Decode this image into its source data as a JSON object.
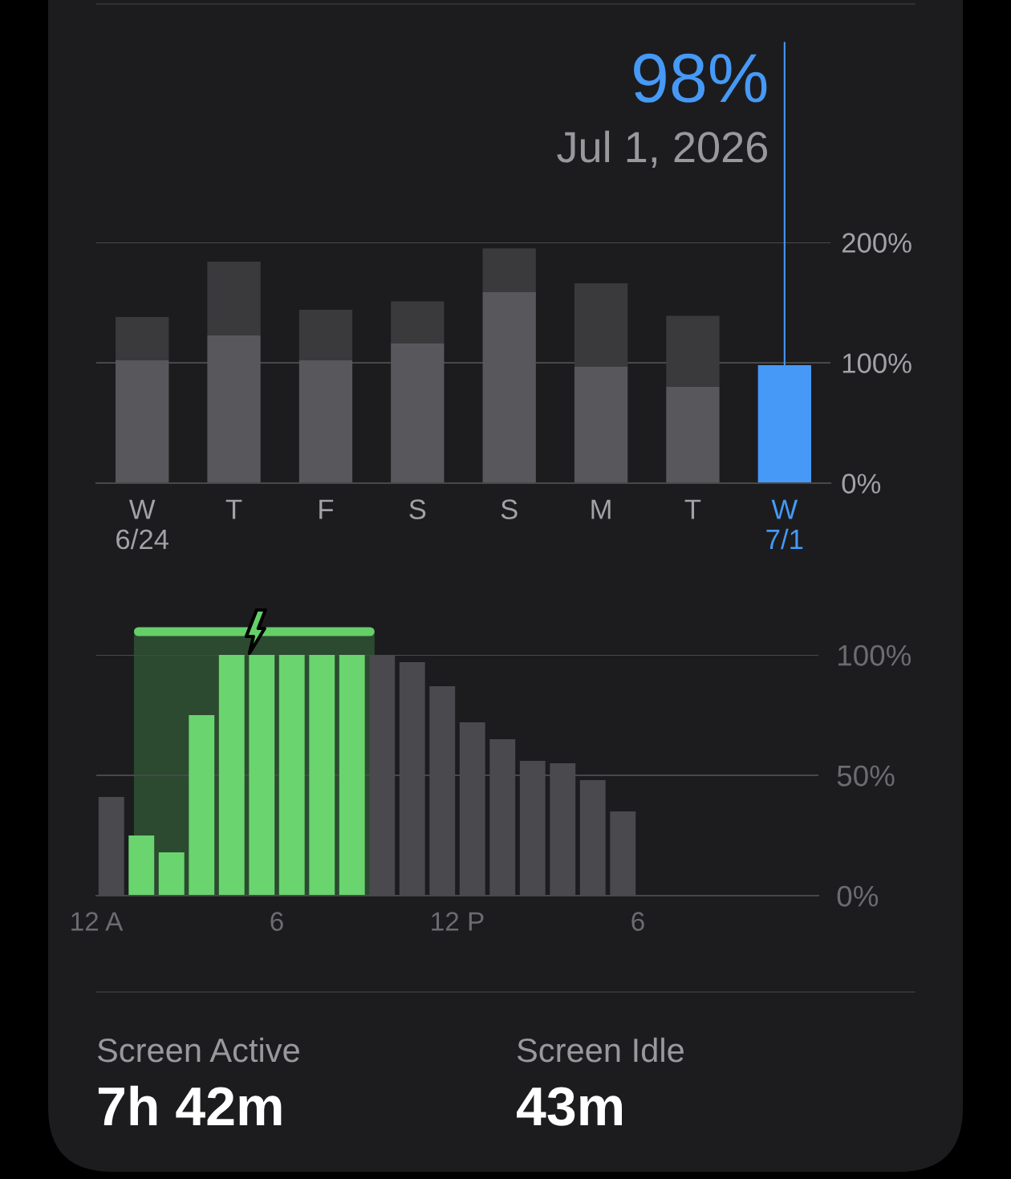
{
  "chart_data": [
    {
      "type": "bar",
      "categories": [
        "W\n6/24",
        "T",
        "F",
        "S",
        "S",
        "M",
        "T",
        "W\n7/1"
      ],
      "stacked": true,
      "series": [
        {
          "color": "#58585c",
          "colors": [
            "#58585c",
            "#58585c",
            "#58585c",
            "#58585c",
            "#58585c",
            "#58585c",
            "#58585c",
            "#4699f6"
          ],
          "values": [
            102,
            123,
            102,
            116,
            159,
            97,
            80,
            98
          ]
        },
        {
          "color": "#3a3a3d",
          "values": [
            36,
            61,
            42,
            35,
            36,
            69,
            59,
            null
          ]
        }
      ],
      "ylim": [
        0,
        200
      ],
      "yticks": [
        {
          "value": 0,
          "label": "0%"
        },
        {
          "value": 100,
          "label": "100%"
        },
        {
          "value": 200,
          "label": "200%"
        }
      ],
      "grid": "y",
      "annotations": [
        {
          "text": "98%",
          "x": "W\n7/1",
          "y": 98
        },
        "Jul 1, 2026"
      ]
    },
    {
      "type": "bar",
      "x": [
        "2026-07-01T00:30",
        "2026-07-01T01:30",
        "2026-07-01T02:30",
        "2026-07-01T03:30",
        "2026-07-01T04:30",
        "2026-07-01T05:30",
        "2026-07-01T06:30",
        "2026-07-01T07:30",
        "2026-07-01T08:30",
        "2026-07-01T09:30",
        "2026-07-01T10:30",
        "2026-07-01T11:30",
        "2026-07-01T12:30",
        "2026-07-01T13:30",
        "2026-07-01T14:30",
        "2026-07-01T15:30",
        "2026-07-01T16:30",
        "2026-07-01T17:30"
      ],
      "values": [
        41,
        25,
        18,
        75,
        100,
        100,
        100,
        100,
        100,
        100,
        97,
        87,
        72,
        65,
        56,
        55,
        48,
        35
      ],
      "colors": [
        "#4a4a4e",
        "#6ad46f",
        "#6ad46f",
        "#6ad46f",
        "#6ad46f",
        "#6ad46f",
        "#6ad46f",
        "#6ad46f",
        "#6ad46f",
        "#4a4a4e",
        "#4a4a4e",
        "#4a4a4e",
        "#4a4a4e",
        "#4a4a4e",
        "#4a4a4e",
        "#4a4a4e",
        "#4a4a4e",
        "#4a4a4e"
      ],
      "xlim": [
        "2026-07-01T00:00",
        "2026-07-02T00:00"
      ],
      "xticks": [
        {
          "value": "2026-07-01T00:00",
          "label": "12 A"
        },
        {
          "value": "2026-07-01T06:00",
          "label": "6"
        },
        {
          "value": "2026-07-01T12:00",
          "label": "12 P"
        },
        {
          "value": "2026-07-01T18:00",
          "label": "6"
        }
      ],
      "ylim": [
        0,
        100
      ],
      "yticks": [
        {
          "value": 0,
          "label": "0%"
        },
        {
          "value": 50,
          "label": "50%"
        },
        {
          "value": 100,
          "label": "100%"
        }
      ],
      "grid": "y",
      "bands": [
        {
          "axis": "x",
          "from": "2026-07-01T01:15",
          "to": "2026-07-01T09:15",
          "color": "#2c4a2f"
        }
      ]
    },
    {
      "type": "other",
      "annotations": [
        "Screen Active",
        "7h 42m",
        "Screen Idle",
        "43m"
      ]
    }
  ]
}
